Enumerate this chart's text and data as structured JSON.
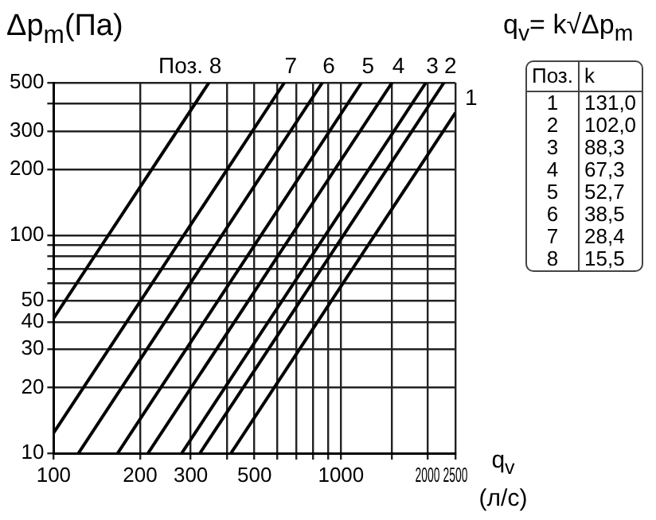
{
  "chart_data": {
    "type": "line",
    "ylabel": "Δp$_{m}$(Па)",
    "xlabel": "q$_{v}$ (л/с)",
    "log": "xy",
    "grid": true,
    "legend": false,
    "marker": "none",
    "line_style": "solid",
    "xlim": [
      100,
      2500
    ],
    "ylim": [
      10,
      500
    ],
    "xticks": [
      100,
      200,
      300,
      {
        "value": 400,
        "label": null
      },
      500,
      {
        "value": 600,
        "label": null
      },
      {
        "value": 700,
        "label": null
      },
      {
        "value": 800,
        "label": null
      },
      {
        "value": 900,
        "label": null
      },
      1000,
      {
        "value": 1500,
        "label": null
      },
      2000,
      2500
    ],
    "yticks": [
      10,
      20,
      30,
      40,
      50,
      {
        "value": 60,
        "label": null
      },
      {
        "value": 70,
        "label": null
      },
      {
        "value": 80,
        "label": null
      },
      {
        "value": 90,
        "label": null
      },
      100,
      200,
      300,
      {
        "value": 400,
        "label": null
      },
      500
    ],
    "series": [
      {
        "name": "1",
        "color": "#000000",
        "x": [
          414,
          2500
        ],
        "values": [
          10,
          364
        ]
      },
      {
        "name": "2",
        "color": "#000000",
        "x": [
          323,
          2281
        ],
        "values": [
          10,
          500
        ]
      },
      {
        "name": "3",
        "color": "#000000",
        "x": [
          279,
          1974
        ],
        "values": [
          10,
          500
        ]
      },
      {
        "name": "4",
        "color": "#000000",
        "x": [
          213,
          1505
        ],
        "values": [
          10,
          500
        ]
      },
      {
        "name": "5",
        "color": "#000000",
        "x": [
          167,
          1178
        ],
        "values": [
          10,
          500
        ]
      },
      {
        "name": "6",
        "color": "#000000",
        "x": [
          122,
          861
        ],
        "values": [
          10,
          500
        ]
      },
      {
        "name": "7",
        "color": "#000000",
        "x": [
          100,
          635
        ],
        "values": [
          12.4,
          500
        ]
      },
      {
        "name": "Поз. 8",
        "color": "#000000",
        "x": [
          100,
          347
        ],
        "values": [
          41.6,
          500
        ]
      }
    ],
    "annotations": [
      "q$_{v}$= k√Δp$_{m}$",
      "Поз.",
      "k",
      "1",
      "131,0",
      "2",
      "102,0",
      "3",
      "88,3",
      "4",
      "67,3",
      "5",
      "52,7",
      "6",
      "38,5",
      "7",
      "28,4",
      "8",
      "15,5"
    ]
  }
}
